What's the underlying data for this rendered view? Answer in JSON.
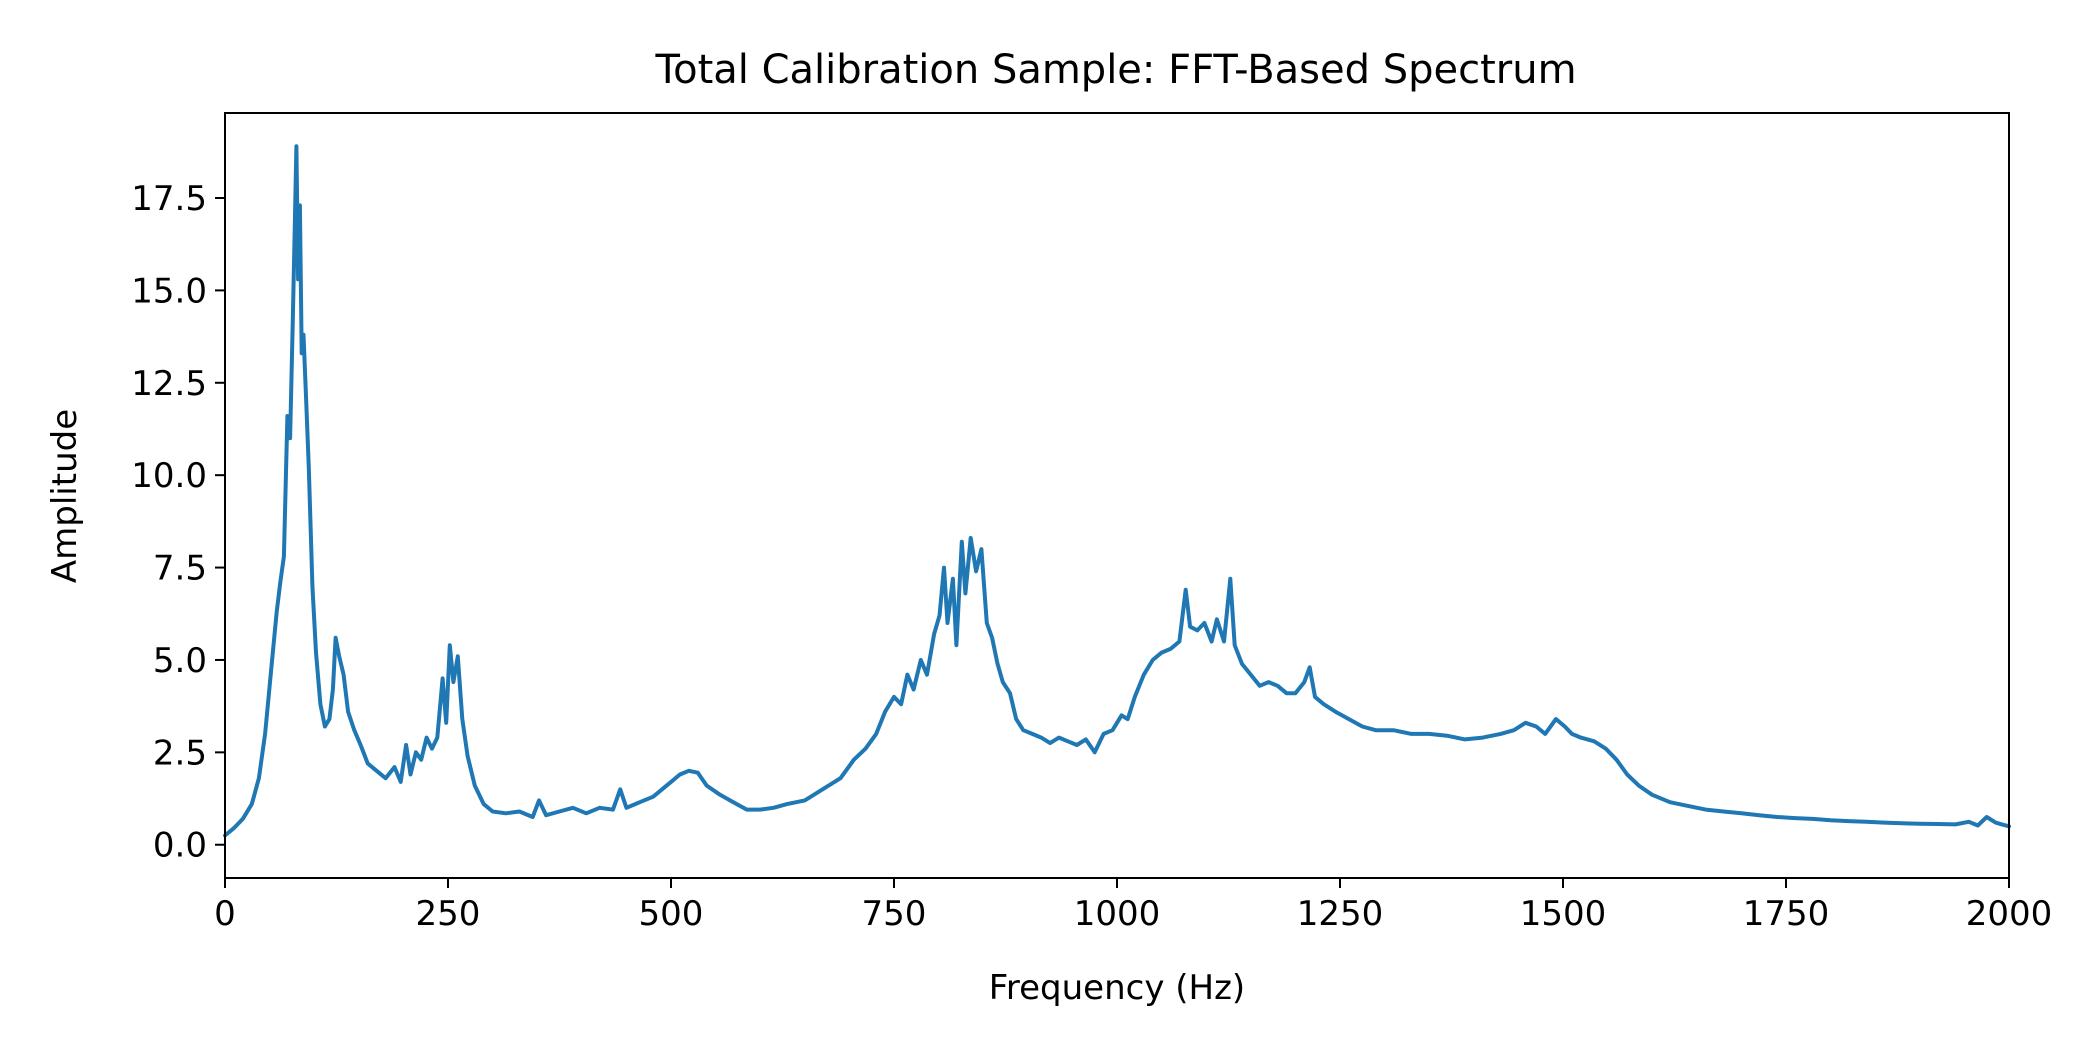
{
  "chart_data": {
    "type": "line",
    "title": "Total Calibration Sample: FFT-Based Spectrum",
    "xlabel": "Frequency (Hz)",
    "ylabel": "Amplitude",
    "xlim": [
      0,
      2000
    ],
    "ylim": [
      -0.9,
      19.8
    ],
    "x_ticks": [
      0,
      250,
      500,
      750,
      1000,
      1250,
      1500,
      1750,
      2000
    ],
    "x_tick_labels": [
      "0",
      "250",
      "500",
      "750",
      "1000",
      "1250",
      "1500",
      "1750",
      "2000"
    ],
    "y_ticks": [
      0.0,
      2.5,
      5.0,
      7.5,
      10.0,
      12.5,
      15.0,
      17.5
    ],
    "y_tick_labels": [
      "0.0",
      "2.5",
      "5.0",
      "7.5",
      "10.0",
      "12.5",
      "15.0",
      "17.5"
    ],
    "grid": false,
    "legend": false,
    "series": [
      {
        "color": "#1f77b4",
        "points": [
          [
            0,
            0.25
          ],
          [
            10,
            0.45
          ],
          [
            20,
            0.7
          ],
          [
            30,
            1.1
          ],
          [
            38,
            1.8
          ],
          [
            45,
            3.0
          ],
          [
            52,
            4.8
          ],
          [
            58,
            6.3
          ],
          [
            62,
            7.1
          ],
          [
            66,
            7.8
          ],
          [
            70,
            11.6
          ],
          [
            73,
            11.0
          ],
          [
            76,
            14.2
          ],
          [
            78,
            16.5
          ],
          [
            80,
            18.9
          ],
          [
            82,
            15.3
          ],
          [
            84,
            17.3
          ],
          [
            86,
            13.3
          ],
          [
            88,
            13.8
          ],
          [
            91,
            12.0
          ],
          [
            94,
            10.2
          ],
          [
            98,
            7.0
          ],
          [
            102,
            5.2
          ],
          [
            107,
            3.8
          ],
          [
            112,
            3.2
          ],
          [
            117,
            3.4
          ],
          [
            121,
            4.2
          ],
          [
            124,
            5.6
          ],
          [
            128,
            5.1
          ],
          [
            133,
            4.6
          ],
          [
            138,
            3.6
          ],
          [
            145,
            3.1
          ],
          [
            152,
            2.7
          ],
          [
            160,
            2.2
          ],
          [
            170,
            2.0
          ],
          [
            180,
            1.8
          ],
          [
            190,
            2.1
          ],
          [
            197,
            1.7
          ],
          [
            203,
            2.7
          ],
          [
            208,
            1.9
          ],
          [
            214,
            2.5
          ],
          [
            220,
            2.3
          ],
          [
            226,
            2.9
          ],
          [
            232,
            2.6
          ],
          [
            238,
            2.9
          ],
          [
            244,
            4.5
          ],
          [
            248,
            3.3
          ],
          [
            252,
            5.4
          ],
          [
            256,
            4.4
          ],
          [
            261,
            5.1
          ],
          [
            266,
            3.4
          ],
          [
            272,
            2.4
          ],
          [
            280,
            1.6
          ],
          [
            290,
            1.1
          ],
          [
            300,
            0.9
          ],
          [
            315,
            0.85
          ],
          [
            330,
            0.9
          ],
          [
            345,
            0.75
          ],
          [
            352,
            1.2
          ],
          [
            360,
            0.8
          ],
          [
            375,
            0.9
          ],
          [
            390,
            1.0
          ],
          [
            405,
            0.85
          ],
          [
            420,
            1.0
          ],
          [
            435,
            0.95
          ],
          [
            443,
            1.5
          ],
          [
            450,
            1.0
          ],
          [
            465,
            1.15
          ],
          [
            480,
            1.3
          ],
          [
            490,
            1.5
          ],
          [
            500,
            1.7
          ],
          [
            510,
            1.9
          ],
          [
            520,
            2.0
          ],
          [
            530,
            1.95
          ],
          [
            540,
            1.6
          ],
          [
            555,
            1.35
          ],
          [
            570,
            1.15
          ],
          [
            585,
            0.95
          ],
          [
            600,
            0.95
          ],
          [
            615,
            1.0
          ],
          [
            630,
            1.1
          ],
          [
            650,
            1.2
          ],
          [
            670,
            1.5
          ],
          [
            690,
            1.8
          ],
          [
            705,
            2.3
          ],
          [
            718,
            2.6
          ],
          [
            730,
            3.0
          ],
          [
            740,
            3.6
          ],
          [
            750,
            4.0
          ],
          [
            758,
            3.8
          ],
          [
            765,
            4.6
          ],
          [
            772,
            4.2
          ],
          [
            780,
            5.0
          ],
          [
            787,
            4.6
          ],
          [
            795,
            5.7
          ],
          [
            801,
            6.2
          ],
          [
            806,
            7.5
          ],
          [
            810,
            6.0
          ],
          [
            816,
            7.2
          ],
          [
            820,
            5.4
          ],
          [
            826,
            8.2
          ],
          [
            830,
            6.8
          ],
          [
            836,
            8.3
          ],
          [
            842,
            7.4
          ],
          [
            848,
            8.0
          ],
          [
            854,
            6.0
          ],
          [
            860,
            5.6
          ],
          [
            866,
            4.9
          ],
          [
            872,
            4.4
          ],
          [
            880,
            4.1
          ],
          [
            887,
            3.4
          ],
          [
            895,
            3.1
          ],
          [
            905,
            3.0
          ],
          [
            915,
            2.9
          ],
          [
            925,
            2.75
          ],
          [
            935,
            2.9
          ],
          [
            945,
            2.8
          ],
          [
            955,
            2.7
          ],
          [
            965,
            2.85
          ],
          [
            975,
            2.5
          ],
          [
            985,
            3.0
          ],
          [
            995,
            3.1
          ],
          [
            1005,
            3.5
          ],
          [
            1012,
            3.4
          ],
          [
            1020,
            4.0
          ],
          [
            1030,
            4.6
          ],
          [
            1040,
            5.0
          ],
          [
            1050,
            5.2
          ],
          [
            1060,
            5.3
          ],
          [
            1070,
            5.5
          ],
          [
            1077,
            6.9
          ],
          [
            1082,
            5.9
          ],
          [
            1090,
            5.8
          ],
          [
            1098,
            6.0
          ],
          [
            1106,
            5.5
          ],
          [
            1112,
            6.1
          ],
          [
            1120,
            5.5
          ],
          [
            1127,
            7.2
          ],
          [
            1132,
            5.4
          ],
          [
            1140,
            4.9
          ],
          [
            1150,
            4.6
          ],
          [
            1160,
            4.3
          ],
          [
            1170,
            4.4
          ],
          [
            1180,
            4.3
          ],
          [
            1190,
            4.1
          ],
          [
            1200,
            4.1
          ],
          [
            1210,
            4.4
          ],
          [
            1216,
            4.8
          ],
          [
            1222,
            4.0
          ],
          [
            1232,
            3.8
          ],
          [
            1245,
            3.6
          ],
          [
            1260,
            3.4
          ],
          [
            1275,
            3.2
          ],
          [
            1290,
            3.1
          ],
          [
            1310,
            3.1
          ],
          [
            1330,
            3.0
          ],
          [
            1350,
            3.0
          ],
          [
            1370,
            2.95
          ],
          [
            1390,
            2.85
          ],
          [
            1410,
            2.9
          ],
          [
            1430,
            3.0
          ],
          [
            1445,
            3.1
          ],
          [
            1458,
            3.3
          ],
          [
            1470,
            3.2
          ],
          [
            1480,
            3.0
          ],
          [
            1492,
            3.4
          ],
          [
            1502,
            3.2
          ],
          [
            1510,
            3.0
          ],
          [
            1520,
            2.9
          ],
          [
            1535,
            2.8
          ],
          [
            1548,
            2.6
          ],
          [
            1560,
            2.3
          ],
          [
            1572,
            1.9
          ],
          [
            1585,
            1.6
          ],
          [
            1600,
            1.35
          ],
          [
            1620,
            1.15
          ],
          [
            1640,
            1.05
          ],
          [
            1660,
            0.95
          ],
          [
            1680,
            0.9
          ],
          [
            1700,
            0.85
          ],
          [
            1720,
            0.8
          ],
          [
            1740,
            0.75
          ],
          [
            1760,
            0.72
          ],
          [
            1780,
            0.7
          ],
          [
            1800,
            0.66
          ],
          [
            1820,
            0.64
          ],
          [
            1840,
            0.62
          ],
          [
            1860,
            0.6
          ],
          [
            1880,
            0.58
          ],
          [
            1900,
            0.57
          ],
          [
            1920,
            0.56
          ],
          [
            1940,
            0.55
          ],
          [
            1955,
            0.62
          ],
          [
            1965,
            0.52
          ],
          [
            1975,
            0.75
          ],
          [
            1985,
            0.6
          ],
          [
            1992,
            0.55
          ],
          [
            2000,
            0.5
          ]
        ]
      }
    ]
  }
}
